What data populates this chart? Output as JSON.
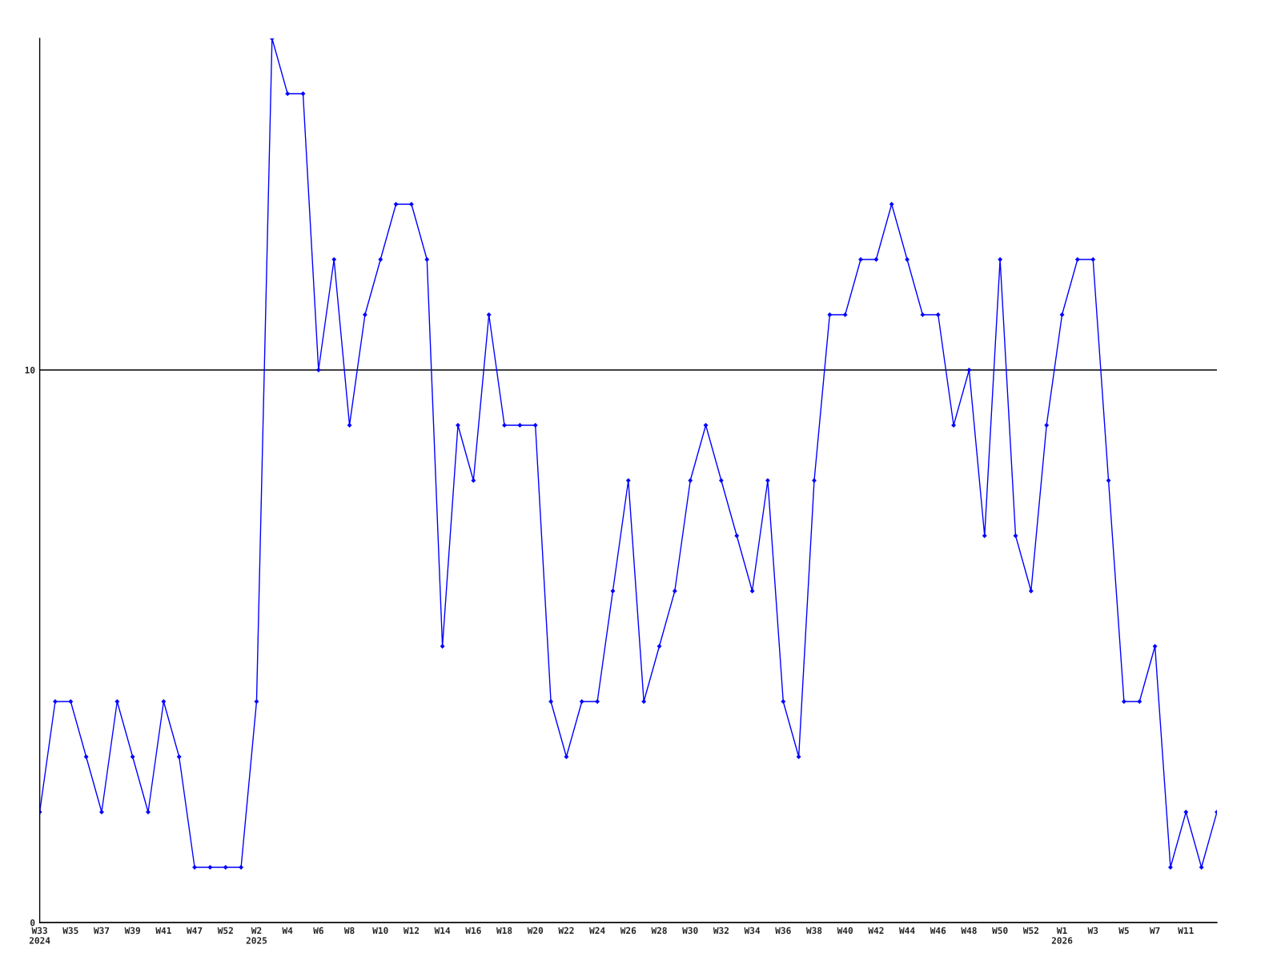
{
  "chart_data": {
    "type": "line",
    "categories": [
      "W33\n2024",
      null,
      "W35",
      null,
      "W37",
      null,
      "W39",
      null,
      "W41",
      null,
      "W47",
      null,
      "W52",
      null,
      "W2\n2025",
      null,
      "W4",
      null,
      "W6",
      null,
      "W8",
      null,
      "W10",
      null,
      "W12",
      null,
      "W14",
      null,
      "W16",
      null,
      "W18",
      null,
      "W20",
      null,
      "W22",
      null,
      "W24",
      null,
      "W26",
      null,
      "W28",
      null,
      "W30",
      null,
      "W32",
      null,
      "W34",
      null,
      "W36",
      null,
      "W38",
      null,
      "W40",
      null,
      "W42",
      null,
      "W44",
      null,
      "W46",
      null,
      "W48",
      null,
      "W50",
      null,
      "W52",
      null,
      "W1\n2026",
      null,
      "W3",
      null,
      "W5",
      null,
      "W7",
      null,
      "W11",
      null,
      null
    ],
    "series": [
      {
        "color": "#0000ff",
        "values": [
          2,
          4,
          4,
          3,
          2,
          4,
          3,
          2,
          4,
          3,
          1,
          1,
          1,
          1,
          4,
          16,
          15,
          15,
          10,
          12,
          9,
          11,
          12,
          13,
          13,
          12,
          5,
          9,
          8,
          11,
          9,
          9,
          9,
          4,
          3,
          4,
          4,
          6,
          8,
          4,
          5,
          6,
          8,
          9,
          8,
          7,
          6,
          8,
          4,
          3,
          8,
          11,
          11,
          12,
          12,
          13,
          12,
          11,
          11,
          9,
          10,
          7,
          12,
          7,
          6,
          9,
          11,
          12,
          12,
          8,
          4,
          4,
          5,
          1,
          2,
          1,
          2
        ]
      }
    ],
    "ylim": [
      0,
      16
    ],
    "yticks": [
      0,
      10
    ],
    "grid": "y",
    "marker": "diamond",
    "line_style": "solid"
  }
}
